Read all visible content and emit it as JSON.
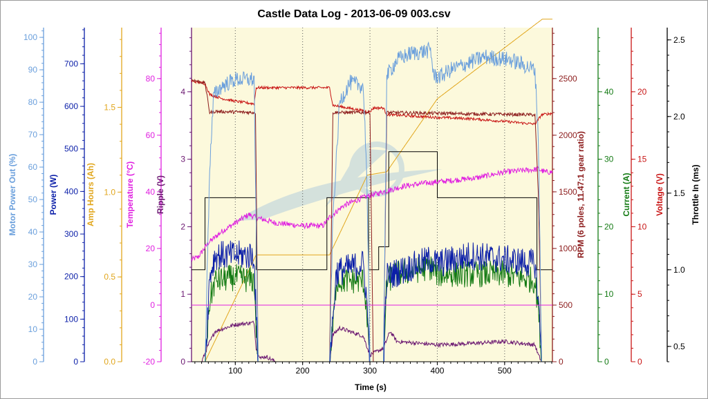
{
  "chart_data": {
    "type": "line",
    "title": "Castle Data Log - 2013-06-09 003.csv",
    "xlabel": "Time (s)",
    "xlim": [
      35,
      571
    ],
    "xticks": [
      "100",
      "200",
      "300",
      "400",
      "500"
    ],
    "grid": "vertical dotted lines at x ticks",
    "background": "pale yellow with faint Castle logo watermark",
    "axes": [
      {
        "key": "motor",
        "label": "Motor Power Out (%)",
        "side": "left",
        "color": "#6a9fdc",
        "min": 0,
        "max": 103,
        "ticks": [
          "0",
          "10",
          "20",
          "30",
          "40",
          "50",
          "60",
          "70",
          "80",
          "90",
          "100"
        ]
      },
      {
        "key": "power",
        "label": "Power (W)",
        "side": "left",
        "color": "#0a1ea8",
        "min": 0,
        "max": 785,
        "ticks": [
          "0",
          "100",
          "200",
          "300",
          "400",
          "500",
          "600",
          "700"
        ]
      },
      {
        "key": "amph",
        "label": "Amp Hours (Ah)",
        "side": "left",
        "color": "#e1a61c",
        "min": 0,
        "max": 1.97,
        "ticks": [
          "0.0",
          "0.5",
          "1.0",
          "1.5"
        ]
      },
      {
        "key": "temp",
        "label": "Temperature (°C)",
        "side": "left",
        "color": "#e020e0",
        "min": -20,
        "max": 98,
        "ticks": [
          "-20",
          "0",
          "20",
          "40",
          "60",
          "80"
        ]
      },
      {
        "key": "ripple",
        "label": "Ripple (V)",
        "side": "left",
        "color": "#6a1670",
        "min": 0,
        "max": 4.95,
        "ticks": [
          "0",
          "1",
          "2",
          "3",
          "4"
        ]
      },
      {
        "key": "rpm",
        "label": "RPM (6 poles, 11.47:1 gear ratio)",
        "side": "right",
        "color": "#8c1c1c",
        "min": 0,
        "max": 2950,
        "ticks": [
          "0",
          "500",
          "1000",
          "1500",
          "2000",
          "2500"
        ]
      },
      {
        "key": "current",
        "label": "Current (A)",
        "side": "right",
        "color": "#137a13",
        "min": 0,
        "max": 49.5,
        "ticks": [
          "0",
          "10",
          "20",
          "30",
          "40"
        ]
      },
      {
        "key": "voltage",
        "label": "Voltage (V)",
        "side": "right",
        "color": "#c81414",
        "min": 0,
        "max": 24.75,
        "ticks": [
          "0",
          "5",
          "10",
          "15",
          "20"
        ]
      },
      {
        "key": "throttle",
        "label": "Throttle In (ms)",
        "side": "right",
        "color": "#000000",
        "min": 0.4,
        "max": 2.58,
        "ticks": [
          "0.5",
          "1.0",
          "1.5",
          "2.0",
          "2.5"
        ]
      }
    ],
    "series": [
      {
        "name": "Motor Power Out (%)",
        "axis": "motor",
        "noise": 2.5,
        "points": [
          [
            35,
            0
          ],
          [
            55,
            0
          ],
          [
            62,
            60
          ],
          [
            68,
            82
          ],
          [
            80,
            85
          ],
          [
            100,
            87
          ],
          [
            128,
            87
          ],
          [
            131,
            40
          ],
          [
            134,
            0
          ],
          [
            240,
            0
          ],
          [
            245,
            45
          ],
          [
            250,
            62
          ],
          [
            255,
            80
          ],
          [
            270,
            86
          ],
          [
            290,
            85
          ],
          [
            295,
            60
          ],
          [
            300,
            0
          ],
          [
            320,
            0
          ],
          [
            325,
            88
          ],
          [
            340,
            93
          ],
          [
            360,
            95
          ],
          [
            390,
            96
          ],
          [
            395,
            88
          ],
          [
            405,
            88
          ],
          [
            420,
            90
          ],
          [
            470,
            94
          ],
          [
            510,
            93
          ],
          [
            545,
            90
          ],
          [
            550,
            70
          ],
          [
            555,
            0
          ],
          [
            571,
            0
          ]
        ]
      },
      {
        "name": "Power (W)",
        "axis": "power",
        "noise": 35,
        "points": [
          [
            35,
            0
          ],
          [
            55,
            0
          ],
          [
            62,
            200
          ],
          [
            70,
            250
          ],
          [
            100,
            250
          ],
          [
            128,
            250
          ],
          [
            131,
            100
          ],
          [
            134,
            0
          ],
          [
            240,
            0
          ],
          [
            245,
            100
          ],
          [
            250,
            210
          ],
          [
            290,
            230
          ],
          [
            295,
            150
          ],
          [
            300,
            0
          ],
          [
            320,
            0
          ],
          [
            325,
            200
          ],
          [
            340,
            210
          ],
          [
            390,
            240
          ],
          [
            400,
            230
          ],
          [
            450,
            250
          ],
          [
            500,
            240
          ],
          [
            545,
            230
          ],
          [
            550,
            150
          ],
          [
            555,
            0
          ],
          [
            571,
            0
          ]
        ]
      },
      {
        "name": "Current (A)",
        "axis": "current",
        "noise": 2,
        "points": [
          [
            35,
            0
          ],
          [
            55,
            0
          ],
          [
            62,
            9
          ],
          [
            70,
            12
          ],
          [
            100,
            12.5
          ],
          [
            128,
            12
          ],
          [
            131,
            5
          ],
          [
            134,
            0
          ],
          [
            240,
            0
          ],
          [
            245,
            5
          ],
          [
            250,
            12
          ],
          [
            290,
            12
          ],
          [
            295,
            8
          ],
          [
            300,
            0
          ],
          [
            320,
            0
          ],
          [
            325,
            12
          ],
          [
            340,
            13
          ],
          [
            390,
            14
          ],
          [
            400,
            13
          ],
          [
            450,
            13
          ],
          [
            500,
            13
          ],
          [
            545,
            12
          ],
          [
            550,
            8
          ],
          [
            555,
            0
          ],
          [
            571,
            0
          ]
        ]
      },
      {
        "name": "Amp Hours (Ah)",
        "axis": "amph",
        "noise": 0,
        "points": [
          [
            35,
            0
          ],
          [
            55,
            0
          ],
          [
            131,
            0.63
          ],
          [
            240,
            0.63
          ],
          [
            296,
            1.1
          ],
          [
            325,
            1.12
          ],
          [
            400,
            1.55
          ],
          [
            556,
            2.02
          ],
          [
            571,
            2.02
          ]
        ]
      },
      {
        "name": "Temperature (°C)",
        "axis": "temp",
        "noise": 1,
        "points": [
          [
            35,
            16
          ],
          [
            45,
            17
          ],
          [
            60,
            22
          ],
          [
            80,
            26
          ],
          [
            100,
            29
          ],
          [
            120,
            32
          ],
          [
            130,
            31
          ],
          [
            160,
            29
          ],
          [
            200,
            28
          ],
          [
            230,
            28
          ],
          [
            240,
            31
          ],
          [
            260,
            35
          ],
          [
            290,
            38
          ],
          [
            320,
            40
          ],
          [
            350,
            42
          ],
          [
            380,
            43
          ],
          [
            420,
            44
          ],
          [
            460,
            45
          ],
          [
            500,
            47
          ],
          [
            550,
            48
          ],
          [
            560,
            47
          ],
          [
            571,
            47
          ]
        ]
      },
      {
        "name": "Ripple (V)",
        "axis": "ripple",
        "noise": 0.03,
        "points": [
          [
            35,
            0
          ],
          [
            50,
            0
          ],
          [
            60,
            0.25
          ],
          [
            70,
            0.45
          ],
          [
            100,
            0.55
          ],
          [
            128,
            0.58
          ],
          [
            131,
            0.2
          ],
          [
            138,
            0.05
          ],
          [
            145,
            0.08
          ],
          [
            160,
            0
          ],
          [
            240,
            0
          ],
          [
            245,
            0.4
          ],
          [
            255,
            0.5
          ],
          [
            290,
            0.38
          ],
          [
            300,
            0.1
          ],
          [
            320,
            0.2
          ],
          [
            330,
            0.45
          ],
          [
            340,
            0.3
          ],
          [
            400,
            0.25
          ],
          [
            450,
            0.27
          ],
          [
            500,
            0.3
          ],
          [
            545,
            0.25
          ],
          [
            550,
            0.1
          ],
          [
            555,
            0
          ],
          [
            571,
            0
          ]
        ]
      },
      {
        "name": "RPM (6 poles, 11.47:1 gear ratio)",
        "axis": "rpm",
        "noise": 15,
        "points": [
          [
            35,
            2490
          ],
          [
            55,
            2460
          ],
          [
            62,
            2200
          ],
          [
            70,
            2210
          ],
          [
            130,
            2200
          ],
          [
            134,
            0
          ],
          [
            240,
            0
          ],
          [
            245,
            2200
          ],
          [
            300,
            2200
          ],
          [
            305,
            0
          ],
          [
            320,
            0
          ],
          [
            325,
            2200
          ],
          [
            545,
            2180
          ],
          [
            550,
            1500
          ],
          [
            555,
            0
          ],
          [
            571,
            0
          ]
        ]
      },
      {
        "name": "Voltage (V)",
        "axis": "voltage",
        "noise": 0.1,
        "points": [
          [
            35,
            20.8
          ],
          [
            55,
            20.6
          ],
          [
            62,
            19.8
          ],
          [
            80,
            19.5
          ],
          [
            100,
            19.3
          ],
          [
            128,
            19.1
          ],
          [
            131,
            20.3
          ],
          [
            240,
            20.3
          ],
          [
            245,
            19.0
          ],
          [
            300,
            18.5
          ],
          [
            305,
            18.8
          ],
          [
            320,
            18.8
          ],
          [
            325,
            18.3
          ],
          [
            400,
            18.1
          ],
          [
            450,
            18
          ],
          [
            500,
            17.8
          ],
          [
            545,
            17.6
          ],
          [
            555,
            18.3
          ],
          [
            571,
            18.4
          ]
        ]
      },
      {
        "name": "Throttle In (ms)",
        "axis": "throttle",
        "noise": 0,
        "step": true,
        "points": [
          [
            35,
            1.0
          ],
          [
            55,
            1.0
          ],
          [
            55,
            1.47
          ],
          [
            131,
            1.47
          ],
          [
            131,
            1.0
          ],
          [
            236,
            1.0
          ],
          [
            236,
            1.47
          ],
          [
            298,
            1.47
          ],
          [
            298,
            1.0
          ],
          [
            313,
            1.0
          ],
          [
            313,
            1.15
          ],
          [
            328,
            1.15
          ],
          [
            328,
            1.77
          ],
          [
            400,
            1.77
          ],
          [
            400,
            1.47
          ],
          [
            548,
            1.47
          ],
          [
            548,
            1.0
          ],
          [
            571,
            1.0
          ]
        ]
      }
    ]
  }
}
